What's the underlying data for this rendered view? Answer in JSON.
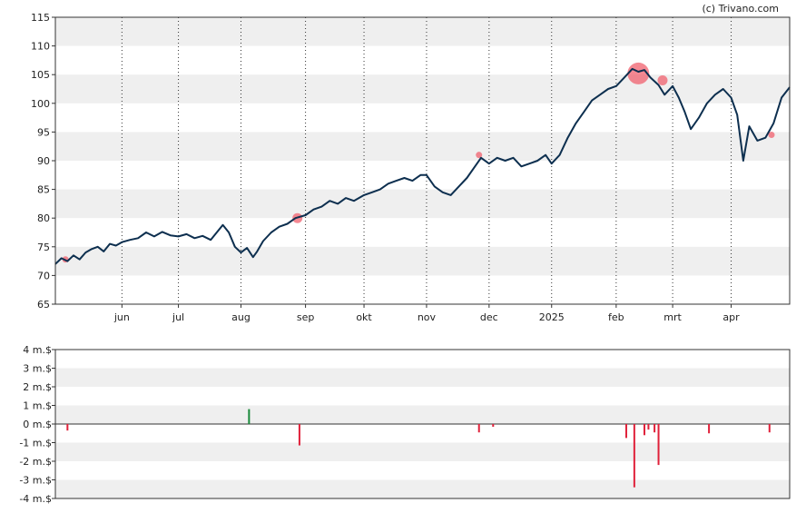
{
  "credit": "(c) Trivano.com",
  "chart_data": [
    {
      "type": "line",
      "name": "price",
      "ylim": [
        65,
        115
      ],
      "yticks": [
        65,
        70,
        75,
        80,
        85,
        90,
        95,
        100,
        105,
        110,
        115
      ],
      "x_range": [
        "2024-05-01",
        "2025-04-30"
      ],
      "xtick_labels": [
        {
          "label": "jun",
          "date": "2024-06-03"
        },
        {
          "label": "jul",
          "date": "2024-07-01"
        },
        {
          "label": "aug",
          "date": "2024-08-01"
        },
        {
          "label": "sep",
          "date": "2024-09-02"
        },
        {
          "label": "okt",
          "date": "2024-10-01"
        },
        {
          "label": "nov",
          "date": "2024-11-01"
        },
        {
          "label": "dec",
          "date": "2024-12-02"
        },
        {
          "label": "2025",
          "date": "2025-01-02"
        },
        {
          "label": "feb",
          "date": "2025-02-03"
        },
        {
          "label": "mrt",
          "date": "2025-03-03"
        },
        {
          "label": "apr",
          "date": "2025-04-01"
        }
      ],
      "grid": true,
      "line_color": "#0d2f4f",
      "series": [
        {
          "values": [
            [
              "2024-05-01",
              72.0
            ],
            [
              "2024-05-04",
              73.0
            ],
            [
              "2024-05-07",
              72.5
            ],
            [
              "2024-05-10",
              73.5
            ],
            [
              "2024-05-13",
              72.8
            ],
            [
              "2024-05-16",
              74.0
            ],
            [
              "2024-05-19",
              74.6
            ],
            [
              "2024-05-22",
              75.0
            ],
            [
              "2024-05-25",
              74.2
            ],
            [
              "2024-05-28",
              75.5
            ],
            [
              "2024-05-31",
              75.2
            ],
            [
              "2024-06-03",
              75.8
            ],
            [
              "2024-06-07",
              76.2
            ],
            [
              "2024-06-11",
              76.5
            ],
            [
              "2024-06-15",
              77.5
            ],
            [
              "2024-06-19",
              76.8
            ],
            [
              "2024-06-23",
              77.6
            ],
            [
              "2024-06-27",
              77.0
            ],
            [
              "2024-07-01",
              76.8
            ],
            [
              "2024-07-05",
              77.2
            ],
            [
              "2024-07-09",
              76.5
            ],
            [
              "2024-07-13",
              76.9
            ],
            [
              "2024-07-17",
              76.2
            ],
            [
              "2024-07-20",
              77.5
            ],
            [
              "2024-07-23",
              78.8
            ],
            [
              "2024-07-26",
              77.5
            ],
            [
              "2024-07-29",
              75.0
            ],
            [
              "2024-08-01",
              74.0
            ],
            [
              "2024-08-04",
              74.8
            ],
            [
              "2024-08-07",
              73.2
            ],
            [
              "2024-08-09",
              74.2
            ],
            [
              "2024-08-12",
              76.0
            ],
            [
              "2024-08-16",
              77.5
            ],
            [
              "2024-08-20",
              78.5
            ],
            [
              "2024-08-24",
              79.0
            ],
            [
              "2024-08-28",
              80.0
            ],
            [
              "2024-09-02",
              80.5
            ],
            [
              "2024-09-06",
              81.5
            ],
            [
              "2024-09-10",
              82.0
            ],
            [
              "2024-09-14",
              83.0
            ],
            [
              "2024-09-18",
              82.5
            ],
            [
              "2024-09-22",
              83.5
            ],
            [
              "2024-09-26",
              83.0
            ],
            [
              "2024-10-01",
              84.0
            ],
            [
              "2024-10-05",
              84.5
            ],
            [
              "2024-10-09",
              85.0
            ],
            [
              "2024-10-13",
              86.0
            ],
            [
              "2024-10-17",
              86.5
            ],
            [
              "2024-10-21",
              87.0
            ],
            [
              "2024-10-25",
              86.5
            ],
            [
              "2024-10-29",
              87.5
            ],
            [
              "2024-11-01",
              87.5
            ],
            [
              "2024-11-05",
              85.5
            ],
            [
              "2024-11-09",
              84.5
            ],
            [
              "2024-11-13",
              84.0
            ],
            [
              "2024-11-17",
              85.5
            ],
            [
              "2024-11-21",
              87.0
            ],
            [
              "2024-11-25",
              89.0
            ],
            [
              "2024-11-28",
              90.5
            ],
            [
              "2024-12-02",
              89.5
            ],
            [
              "2024-12-06",
              90.5
            ],
            [
              "2024-12-10",
              90.0
            ],
            [
              "2024-12-14",
              90.5
            ],
            [
              "2024-12-18",
              89.0
            ],
            [
              "2024-12-22",
              89.5
            ],
            [
              "2024-12-26",
              90.0
            ],
            [
              "2024-12-30",
              91.0
            ],
            [
              "2025-01-02",
              89.5
            ],
            [
              "2025-01-06",
              91.0
            ],
            [
              "2025-01-10",
              94.0
            ],
            [
              "2025-01-14",
              96.5
            ],
            [
              "2025-01-18",
              98.5
            ],
            [
              "2025-01-22",
              100.5
            ],
            [
              "2025-01-26",
              101.5
            ],
            [
              "2025-01-30",
              102.5
            ],
            [
              "2025-02-03",
              103.0
            ],
            [
              "2025-02-07",
              104.5
            ],
            [
              "2025-02-11",
              106.0
            ],
            [
              "2025-02-14",
              105.5
            ],
            [
              "2025-02-17",
              105.8
            ],
            [
              "2025-02-20",
              104.5
            ],
            [
              "2025-02-24",
              103.2
            ],
            [
              "2025-02-27",
              101.5
            ],
            [
              "2025-03-03",
              103.0
            ],
            [
              "2025-03-06",
              101.0
            ],
            [
              "2025-03-09",
              98.5
            ],
            [
              "2025-03-12",
              95.5
            ],
            [
              "2025-03-16",
              97.5
            ],
            [
              "2025-03-20",
              100.0
            ],
            [
              "2025-03-24",
              101.5
            ],
            [
              "2025-03-28",
              102.5
            ],
            [
              "2025-04-01",
              101.0
            ],
            [
              "2025-04-04",
              98.0
            ],
            [
              "2025-04-07",
              90.0
            ],
            [
              "2025-04-10",
              96.0
            ],
            [
              "2025-04-14",
              93.5
            ],
            [
              "2025-04-18",
              94.0
            ],
            [
              "2025-04-22",
              96.5
            ],
            [
              "2025-04-26",
              101.0
            ],
            [
              "2025-04-30",
              102.8
            ]
          ]
        }
      ],
      "markers": [
        {
          "date": "2024-05-06",
          "value": 72.8,
          "size": "small"
        },
        {
          "date": "2024-08-29",
          "value": 80.0,
          "size": "medium"
        },
        {
          "date": "2024-11-27",
          "value": 91.0,
          "size": "small"
        },
        {
          "date": "2025-02-14",
          "value": 105.2,
          "size": "large"
        },
        {
          "date": "2025-02-26",
          "value": 104.0,
          "size": "medium"
        },
        {
          "date": "2025-04-21",
          "value": 94.5,
          "size": "small"
        }
      ],
      "marker_color": "#f0606e"
    },
    {
      "type": "bar",
      "name": "transactions",
      "ylim": [
        -4,
        4
      ],
      "ytick_labels": [
        "4 m.$",
        "3 m.$",
        "2 m.$",
        "1 m.$",
        "0 m.$",
        "-1 m.$",
        "-2 m.$",
        "-3 m.$",
        "-4 m.$"
      ],
      "yticks": [
        4,
        3,
        2,
        1,
        0,
        -1,
        -2,
        -3,
        -4
      ],
      "grid": true,
      "positive_color": "#1a8a3a",
      "negative_color": "#e0213a",
      "bars": [
        {
          "date": "2024-05-07",
          "value": -0.35
        },
        {
          "date": "2024-08-05",
          "value": 0.8
        },
        {
          "date": "2024-08-30",
          "value": -1.15
        },
        {
          "date": "2024-11-27",
          "value": -0.45
        },
        {
          "date": "2024-12-04",
          "value": -0.15
        },
        {
          "date": "2025-02-08",
          "value": -0.75
        },
        {
          "date": "2025-02-12",
          "value": -3.4
        },
        {
          "date": "2025-02-17",
          "value": -0.6
        },
        {
          "date": "2025-02-19",
          "value": -0.3
        },
        {
          "date": "2025-02-22",
          "value": -0.45
        },
        {
          "date": "2025-02-24",
          "value": -2.2
        },
        {
          "date": "2025-03-21",
          "value": -0.5
        },
        {
          "date": "2025-04-20",
          "value": -0.45
        }
      ]
    }
  ]
}
